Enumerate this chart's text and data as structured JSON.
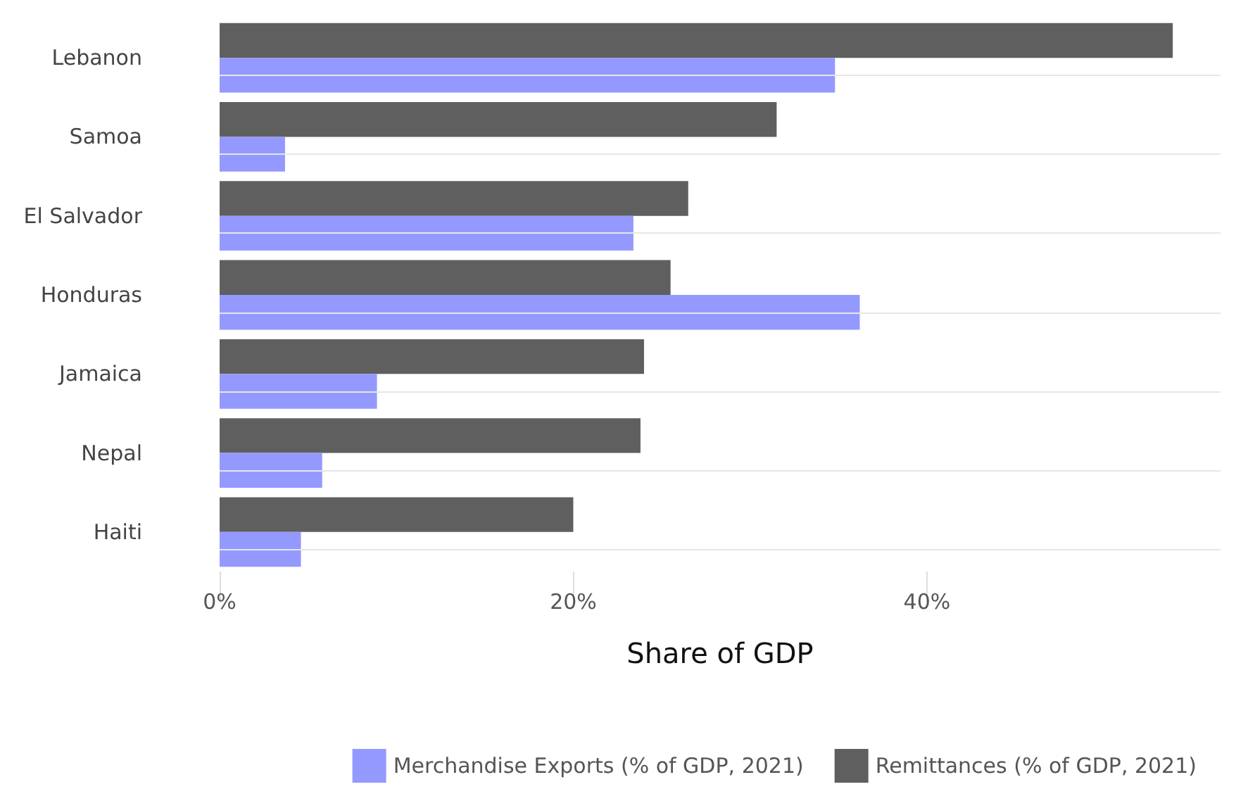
{
  "chart_data": {
    "type": "bar",
    "orientation": "horizontal",
    "xlabel": "Share of GDP",
    "categories": [
      "Lebanon",
      "Samoa",
      "El Salvador",
      "Honduras",
      "Jamaica",
      "Nepal",
      "Haiti"
    ],
    "series": [
      {
        "name": "Merchandise Exports (% of GDP, 2021)",
        "color": "#9499ff",
        "values": [
          34.8,
          3.7,
          23.4,
          36.2,
          8.9,
          5.8,
          4.6
        ]
      },
      {
        "name": "Remittances (% of GDP, 2021)",
        "color": "#5f5f5f",
        "values": [
          53.9,
          31.5,
          26.5,
          25.5,
          24.0,
          23.8,
          20.0
        ]
      }
    ],
    "xlim": [
      0,
      56.6
    ],
    "xticks": [
      {
        "value": 0,
        "label": "0%"
      },
      {
        "value": 20,
        "label": "20%"
      },
      {
        "value": 40,
        "label": "40%"
      }
    ],
    "grid": "y",
    "legend": "bottom right"
  }
}
